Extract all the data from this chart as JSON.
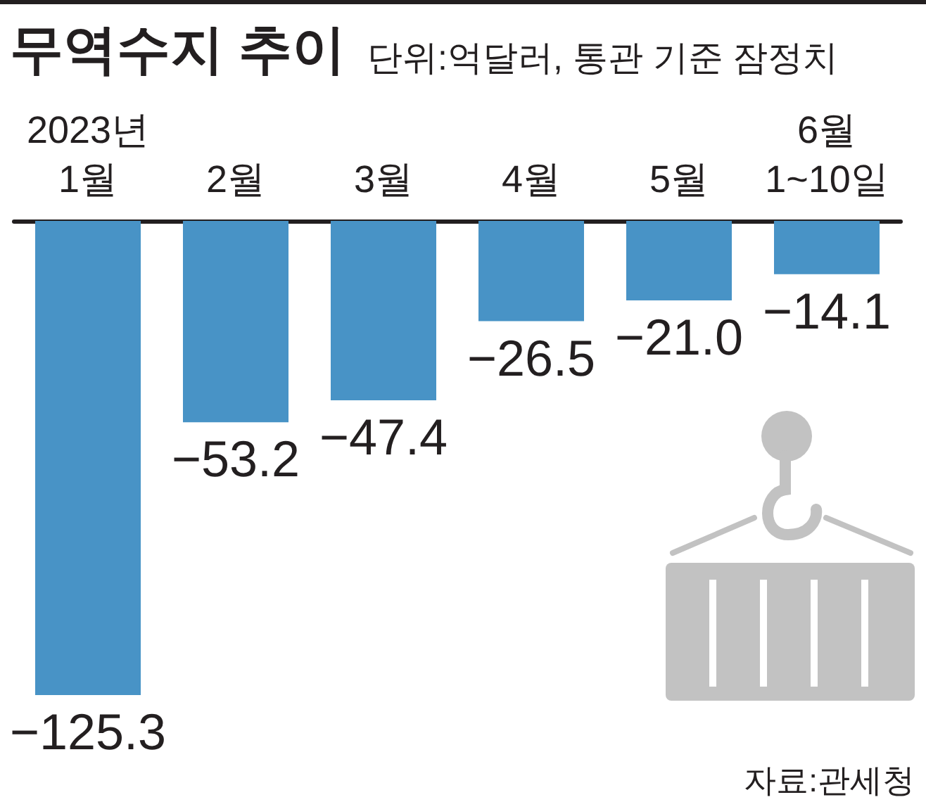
{
  "chart_data": {
    "type": "bar",
    "title": "무역수지 추이",
    "subtitle": "단위:억달러, 통관 기준 잠정치",
    "categories": [
      "2023년\n1월",
      "2월",
      "3월",
      "4월",
      "5월",
      "6월\n1~10일"
    ],
    "values": [
      -125.3,
      -53.2,
      -47.4,
      -26.5,
      -21.0,
      -14.1
    ],
    "value_labels": [
      "−125.3",
      "−53.2",
      "−47.4",
      "−26.5",
      "−21.0",
      "−14.1"
    ],
    "color": "#4893c6",
    "annotations": [
      "자료:관세청"
    ]
  }
}
